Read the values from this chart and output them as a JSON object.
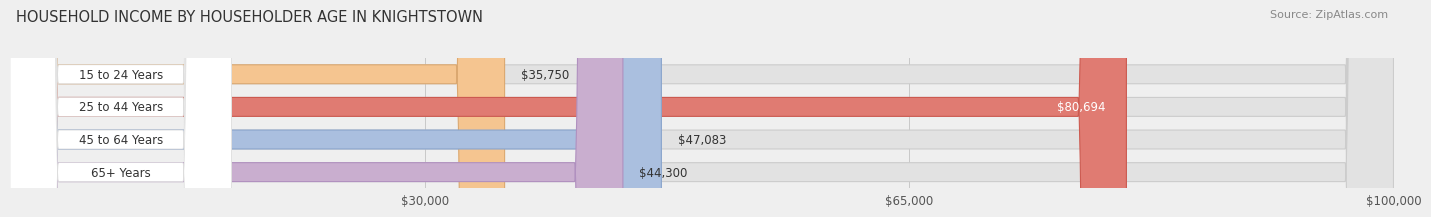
{
  "title": "HOUSEHOLD INCOME BY HOUSEHOLDER AGE IN KNIGHTSTOWN",
  "source": "Source: ZipAtlas.com",
  "categories": [
    "15 to 24 Years",
    "25 to 44 Years",
    "45 to 64 Years",
    "65+ Years"
  ],
  "values": [
    35750,
    80694,
    47083,
    44300
  ],
  "bar_colors": [
    "#f5c590",
    "#e07b72",
    "#aabfdf",
    "#c9aecf"
  ],
  "bar_edge_colors": [
    "#dba870",
    "#cc5a50",
    "#8aa5cc",
    "#b090bf"
  ],
  "label_colors": [
    "#333333",
    "#ffffff",
    "#333333",
    "#333333"
  ],
  "value_labels": [
    "$35,750",
    "$80,694",
    "$47,083",
    "$44,300"
  ],
  "bar_height": 0.58,
  "xlim": [
    0,
    100000
  ],
  "xticks": [
    0,
    30000,
    65000,
    100000
  ],
  "xtick_labels": [
    "",
    "$30,000",
    "$65,000",
    "$100,000"
  ],
  "background_color": "#efefef",
  "bar_background_color": "#e2e2e2",
  "title_fontsize": 10.5,
  "source_fontsize": 8,
  "label_fontsize": 8.5,
  "value_fontsize": 8.5,
  "grid_color": "#c8c8c8"
}
